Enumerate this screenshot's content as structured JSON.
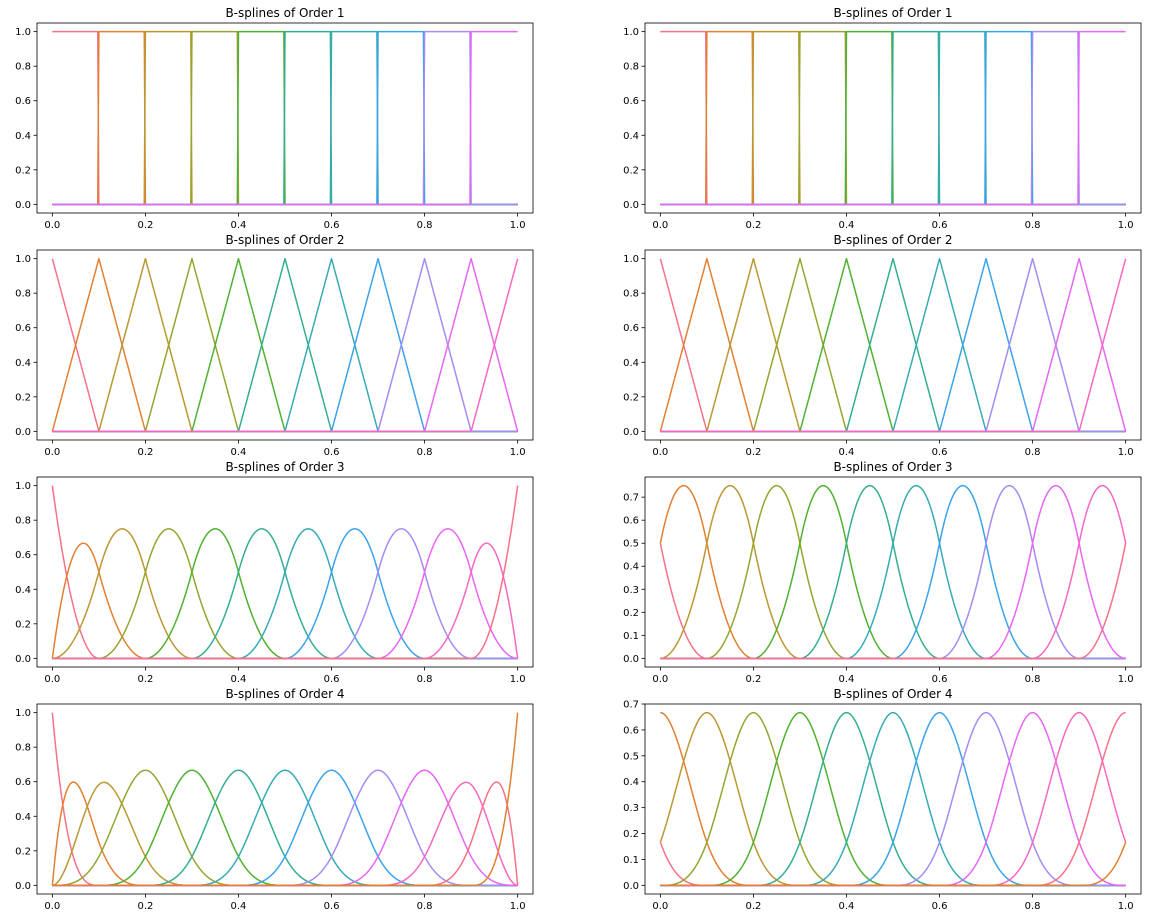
{
  "figure": {
    "background": "#ffffff",
    "axis_color": "#000000",
    "curve_colors": [
      "#f77189",
      "#e28032",
      "#bb9832",
      "#97a431",
      "#50b131",
      "#34ae91",
      "#37abb5",
      "#3ba3ec",
      "#a48cf4",
      "#e866f4",
      "#f668c2"
    ],
    "n_curves": 11
  },
  "chart_data": [
    {
      "type": "line",
      "title": "B-splines of Order 1",
      "order": 1,
      "boundary": "clamped",
      "knots": [
        0.0,
        0.1,
        0.2,
        0.3,
        0.4,
        0.5,
        0.6,
        0.7,
        0.8,
        0.9,
        1.0
      ],
      "xlim": [
        0.0,
        1.0
      ],
      "ylim": [
        0.0,
        1.0
      ],
      "xticks": [
        "0.0",
        "0.2",
        "0.4",
        "0.6",
        "0.8",
        "1.0"
      ],
      "yticks": [
        "0.0",
        "0.2",
        "0.4",
        "0.6",
        "0.8",
        "1.0"
      ],
      "grid": false,
      "legend": "none"
    },
    {
      "type": "line",
      "title": "B-splines of Order 1",
      "order": 1,
      "boundary": "periodic",
      "knots": [
        0.0,
        0.1,
        0.2,
        0.3,
        0.4,
        0.5,
        0.6,
        0.7,
        0.8,
        0.9,
        1.0
      ],
      "xlim": [
        0.0,
        1.0
      ],
      "ylim": [
        0.0,
        1.0
      ],
      "xticks": [
        "0.0",
        "0.2",
        "0.4",
        "0.6",
        "0.8",
        "1.0"
      ],
      "yticks": [
        "0.0",
        "0.2",
        "0.4",
        "0.6",
        "0.8",
        "1.0"
      ],
      "grid": false,
      "legend": "none"
    },
    {
      "type": "line",
      "title": "B-splines of Order 2",
      "order": 2,
      "boundary": "clamped",
      "knots": [
        0.0,
        0.1,
        0.2,
        0.3,
        0.4,
        0.5,
        0.6,
        0.7,
        0.8,
        0.9,
        1.0
      ],
      "xlim": [
        0.0,
        1.0
      ],
      "ylim": [
        0.0,
        1.0
      ],
      "xticks": [
        "0.0",
        "0.2",
        "0.4",
        "0.6",
        "0.8",
        "1.0"
      ],
      "yticks": [
        "0.0",
        "0.2",
        "0.4",
        "0.6",
        "0.8",
        "1.0"
      ],
      "grid": false,
      "legend": "none"
    },
    {
      "type": "line",
      "title": "B-splines of Order 2",
      "order": 2,
      "boundary": "periodic",
      "knots": [
        0.0,
        0.1,
        0.2,
        0.3,
        0.4,
        0.5,
        0.6,
        0.7,
        0.8,
        0.9,
        1.0
      ],
      "xlim": [
        0.0,
        1.0
      ],
      "ylim": [
        0.0,
        1.0
      ],
      "xticks": [
        "0.0",
        "0.2",
        "0.4",
        "0.6",
        "0.8",
        "1.0"
      ],
      "yticks": [
        "0.0",
        "0.2",
        "0.4",
        "0.6",
        "0.8",
        "1.0"
      ],
      "grid": false,
      "legend": "none"
    },
    {
      "type": "line",
      "title": "B-splines of Order 3",
      "order": 3,
      "boundary": "clamped",
      "knots": [
        0.0,
        0.1,
        0.2,
        0.3,
        0.4,
        0.5,
        0.6,
        0.7,
        0.8,
        0.9,
        1.0
      ],
      "xlim": [
        0.0,
        1.0
      ],
      "ylim": [
        0.0,
        1.0
      ],
      "xticks": [
        "0.0",
        "0.2",
        "0.4",
        "0.6",
        "0.8",
        "1.0"
      ],
      "yticks": [
        "0.0",
        "0.2",
        "0.4",
        "0.6",
        "0.8",
        "1.0"
      ],
      "grid": false,
      "legend": "none"
    },
    {
      "type": "line",
      "title": "B-splines of Order 3",
      "order": 3,
      "boundary": "periodic",
      "knots": [
        0.0,
        0.1,
        0.2,
        0.3,
        0.4,
        0.5,
        0.6,
        0.7,
        0.8,
        0.9,
        1.0
      ],
      "xlim": [
        0.0,
        1.0
      ],
      "ylim": [
        0.0,
        0.75
      ],
      "xticks": [
        "0.0",
        "0.2",
        "0.4",
        "0.6",
        "0.8",
        "1.0"
      ],
      "yticks": [
        "0.0",
        "0.1",
        "0.2",
        "0.3",
        "0.4",
        "0.5",
        "0.6",
        "0.7"
      ],
      "grid": false,
      "legend": "none"
    },
    {
      "type": "line",
      "title": "B-splines of Order 4",
      "order": 4,
      "boundary": "clamped",
      "knots": [
        0.0,
        0.1,
        0.2,
        0.3,
        0.4,
        0.5,
        0.6,
        0.7,
        0.8,
        0.9,
        1.0
      ],
      "xlim": [
        0.0,
        1.0
      ],
      "ylim": [
        0.0,
        1.0
      ],
      "xticks": [
        "0.0",
        "0.2",
        "0.4",
        "0.6",
        "0.8",
        "1.0"
      ],
      "yticks": [
        "0.0",
        "0.2",
        "0.4",
        "0.6",
        "0.8",
        "1.0"
      ],
      "grid": false,
      "legend": "none"
    },
    {
      "type": "line",
      "title": "B-splines of Order 4",
      "order": 4,
      "boundary": "periodic",
      "knots": [
        0.0,
        0.1,
        0.2,
        0.3,
        0.4,
        0.5,
        0.6,
        0.7,
        0.8,
        0.9,
        1.0
      ],
      "xlim": [
        0.0,
        1.0
      ],
      "ylim": [
        0.0,
        0.6667
      ],
      "xticks": [
        "0.0",
        "0.2",
        "0.4",
        "0.6",
        "0.8",
        "1.0"
      ],
      "yticks": [
        "0.0",
        "0.1",
        "0.2",
        "0.3",
        "0.4",
        "0.5",
        "0.6",
        "0.7"
      ],
      "grid": false,
      "legend": "none"
    }
  ]
}
